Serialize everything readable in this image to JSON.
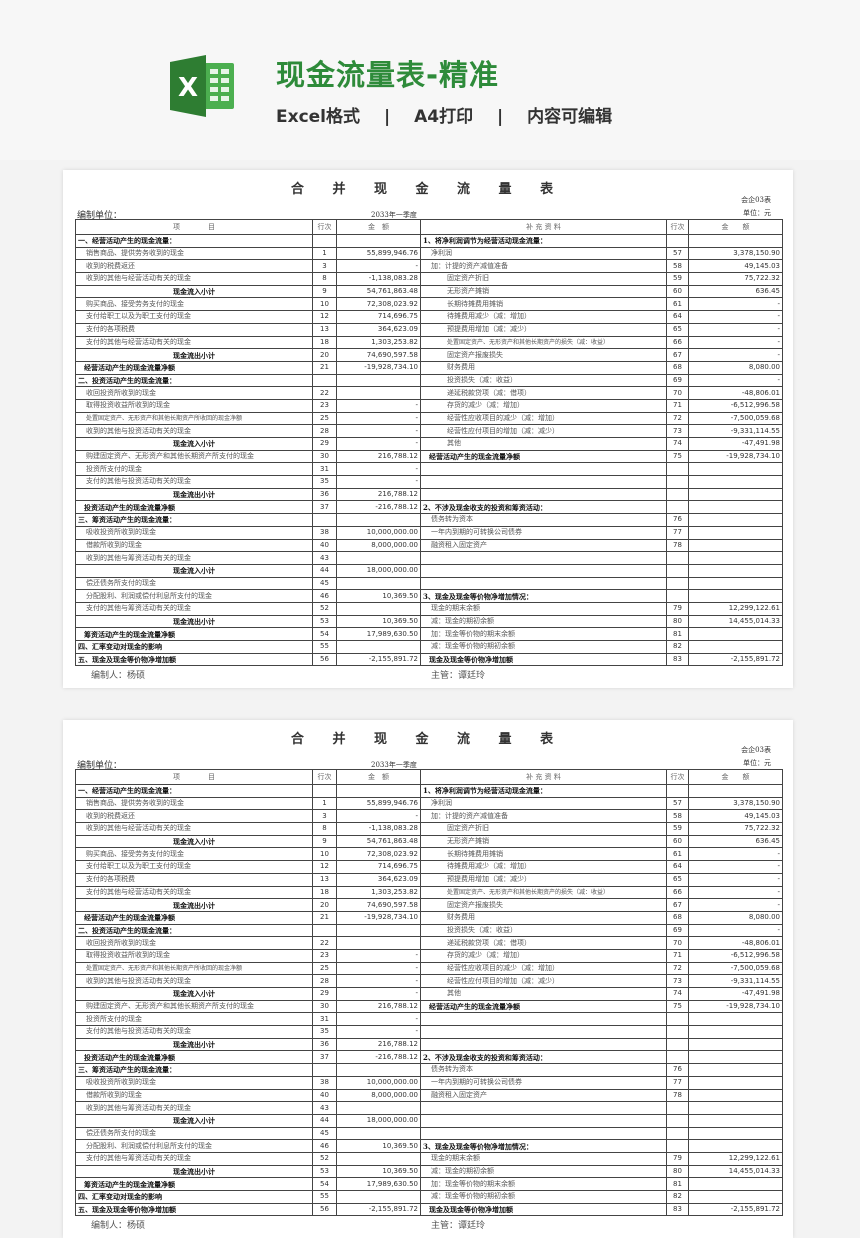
{
  "banner": {
    "title": "现金流量表-精准",
    "features": [
      "Excel格式",
      "|",
      "A4打印",
      "|",
      "内容可编辑"
    ],
    "logo_letter": "X",
    "brand_color": "#2e8b3a"
  },
  "sheet": {
    "title": "合 并 现 金 流 量 表",
    "unit_label": "编制单位：",
    "period": "2033年一季度",
    "form_code": "会企03表",
    "currency": "单位：元",
    "headers": [
      "项　　　　目",
      "行次",
      "金　额",
      "补 充 资 料",
      "行次",
      "金　　额"
    ],
    "preparer": "编制人：杨硕",
    "supervisor": "主管：谭廷玲",
    "rows": [
      {
        "l": [
          "一、经营活动产生的现金流量：",
          "",
          ""
        ],
        "lk": "heading",
        "r": [
          "1、将净利润调节为经营活动现金流量：",
          "",
          ""
        ],
        "rk": "heading"
      },
      {
        "l": [
          "销售商品、提供劳务收到的现金",
          "1",
          "55,899,946.76"
        ],
        "lk": "item",
        "r": [
          "净利润",
          "57",
          "3,378,150.90"
        ],
        "rk": "item"
      },
      {
        "l": [
          "收到的税费返还",
          "3",
          "-"
        ],
        "lk": "item",
        "r": [
          "加：计提的资产减值准备",
          "58",
          "49,145.03"
        ],
        "rk": "item"
      },
      {
        "l": [
          "收到的其他与经营活动有关的现金",
          "8",
          "-1,138,083.28"
        ],
        "lk": "item",
        "r": [
          "固定资产折旧",
          "59",
          "75,722.32"
        ],
        "rk": "item2"
      },
      {
        "l": [
          "现金流入小计",
          "9",
          "54,761,863.48"
        ],
        "lk": "subtotal",
        "r": [
          "无形资产摊销",
          "60",
          "636.45"
        ],
        "rk": "item2"
      },
      {
        "l": [
          "购买商品、接受劳务支付的现金",
          "10",
          "72,308,023.92"
        ],
        "lk": "item",
        "r": [
          "长期待摊费用摊销",
          "61",
          "-"
        ],
        "rk": "item2"
      },
      {
        "l": [
          "支付给职工以及为职工支付的现金",
          "12",
          "714,696.75"
        ],
        "lk": "item",
        "r": [
          "待摊费用减少（减：增加）",
          "64",
          "-"
        ],
        "rk": "item2"
      },
      {
        "l": [
          "支付的各项税费",
          "13",
          "364,623.09"
        ],
        "lk": "item",
        "r": [
          "预提费用增加（减：减少）",
          "65",
          "-"
        ],
        "rk": "item2"
      },
      {
        "l": [
          "支付的其他与经营活动有关的现金",
          "18",
          "1,303,253.82"
        ],
        "lk": "item",
        "r": [
          "处置固定资产、无形资产和其他长期资产的损失（减：收益）",
          "66",
          "-"
        ],
        "rk": "item2 small"
      },
      {
        "l": [
          "现金流出小计",
          "20",
          "74,690,597.58"
        ],
        "lk": "subtotal",
        "r": [
          "固定资产报废损失",
          "67",
          "-"
        ],
        "rk": "item2"
      },
      {
        "l": [
          "经营活动产生的现金流量净额",
          "21",
          "-19,928,734.10"
        ],
        "lk": "net",
        "r": [
          "财务费用",
          "68",
          "8,080.00"
        ],
        "rk": "item2"
      },
      {
        "l": [
          "二、投资活动产生的现金流量：",
          "",
          ""
        ],
        "lk": "heading",
        "r": [
          "投资损失（减：收益）",
          "69",
          "-"
        ],
        "rk": "item2"
      },
      {
        "l": [
          "收回投资所收到的现金",
          "22",
          ""
        ],
        "lk": "item",
        "r": [
          "递延税款贷项（减：借项）",
          "70",
          "-48,806.01"
        ],
        "rk": "item2"
      },
      {
        "l": [
          "取得投资收益所收到的现金",
          "23",
          "-"
        ],
        "lk": "item",
        "r": [
          "存货的减少（减：增加）",
          "71",
          "-6,512,996.58"
        ],
        "rk": "item2"
      },
      {
        "l": [
          "处置固定资产、无形资产和其他长期资产所收回的现金净额",
          "25",
          "-"
        ],
        "lk": "item small",
        "r": [
          "经营性应收项目的减少（减：增加）",
          "72",
          "-7,500,059.68"
        ],
        "rk": "item2"
      },
      {
        "l": [
          "收到的其他与投资活动有关的现金",
          "28",
          "-"
        ],
        "lk": "item",
        "r": [
          "经营性应付项目的增加（减：减少）",
          "73",
          "-9,331,114.55"
        ],
        "rk": "item2"
      },
      {
        "l": [
          "现金流入小计",
          "29",
          "-"
        ],
        "lk": "subtotal",
        "r": [
          "其他",
          "74",
          "-47,491.98"
        ],
        "rk": "item2"
      },
      {
        "l": [
          "购建固定资产、无形资产和其他长期资产所支付的现金",
          "30",
          "216,788.12"
        ],
        "lk": "item",
        "r": [
          "经营活动产生的现金流量净额",
          "75",
          "-19,928,734.10"
        ],
        "rk": "net"
      },
      {
        "l": [
          "投资所支付的现金",
          "31",
          "-"
        ],
        "lk": "item",
        "r": [
          "",
          "",
          ""
        ],
        "rk": "item"
      },
      {
        "l": [
          "支付的其他与投资活动有关的现金",
          "35",
          "-"
        ],
        "lk": "item",
        "r": [
          "",
          "",
          ""
        ],
        "rk": "item"
      },
      {
        "l": [
          "现金流出小计",
          "36",
          "216,788.12"
        ],
        "lk": "subtotal",
        "r": [
          "",
          "",
          ""
        ],
        "rk": "item"
      },
      {
        "l": [
          "投资活动产生的现金流量净额",
          "37",
          "-216,788.12"
        ],
        "lk": "net",
        "r": [
          "2、不涉及现金收支的投资和筹资活动：",
          "",
          ""
        ],
        "rk": "heading"
      },
      {
        "l": [
          "三、筹资活动产生的现金流量：",
          "",
          ""
        ],
        "lk": "heading",
        "r": [
          "债务转为资本",
          "76",
          ""
        ],
        "rk": "item"
      },
      {
        "l": [
          "吸收投资所收到的现金",
          "38",
          "10,000,000.00"
        ],
        "lk": "item",
        "r": [
          "一年内到期的可转换公司债券",
          "77",
          ""
        ],
        "rk": "item"
      },
      {
        "l": [
          "借款所收到的现金",
          "40",
          "8,000,000.00"
        ],
        "lk": "item",
        "r": [
          "融资租入固定资产",
          "78",
          ""
        ],
        "rk": "item"
      },
      {
        "l": [
          "收到的其他与筹资活动有关的现金",
          "43",
          ""
        ],
        "lk": "item",
        "r": [
          "",
          "",
          ""
        ],
        "rk": "item"
      },
      {
        "l": [
          "现金流入小计",
          "44",
          "18,000,000.00"
        ],
        "lk": "subtotal",
        "r": [
          "",
          "",
          ""
        ],
        "rk": "item"
      },
      {
        "l": [
          "偿还债务所支付的现金",
          "45",
          ""
        ],
        "lk": "item",
        "r": [
          "",
          "",
          ""
        ],
        "rk": "item"
      },
      {
        "l": [
          "分配股利、利润或偿付利息所支付的现金",
          "46",
          "10,369.50"
        ],
        "lk": "item",
        "r": [
          "3、现金及现金等价物净增加情况：",
          "",
          ""
        ],
        "rk": "heading"
      },
      {
        "l": [
          "支付的其他与筹资活动有关的现金",
          "52",
          ""
        ],
        "lk": "item",
        "r": [
          "现金的期末余额",
          "79",
          "12,299,122.61"
        ],
        "rk": "item"
      },
      {
        "l": [
          "现金流出小计",
          "53",
          "10,369.50"
        ],
        "lk": "subtotal",
        "r": [
          "减：现金的期初余额",
          "80",
          "14,455,014.33"
        ],
        "rk": "item"
      },
      {
        "l": [
          "筹资活动产生的现金流量净额",
          "54",
          "17,989,630.50"
        ],
        "lk": "net",
        "r": [
          "加：现金等价物的期末余额",
          "81",
          ""
        ],
        "rk": "item"
      },
      {
        "l": [
          "四、汇率变动对现金的影响",
          "55",
          ""
        ],
        "lk": "heading",
        "r": [
          "减：现金等价物的期初余额",
          "82",
          ""
        ],
        "rk": "item"
      },
      {
        "l": [
          "五、现金及现金等价物净增加额",
          "56",
          "-2,155,891.72"
        ],
        "lk": "heading",
        "r": [
          "现金及现金等价物净增加额",
          "83",
          "-2,155,891.72"
        ],
        "rk": "net"
      }
    ]
  }
}
